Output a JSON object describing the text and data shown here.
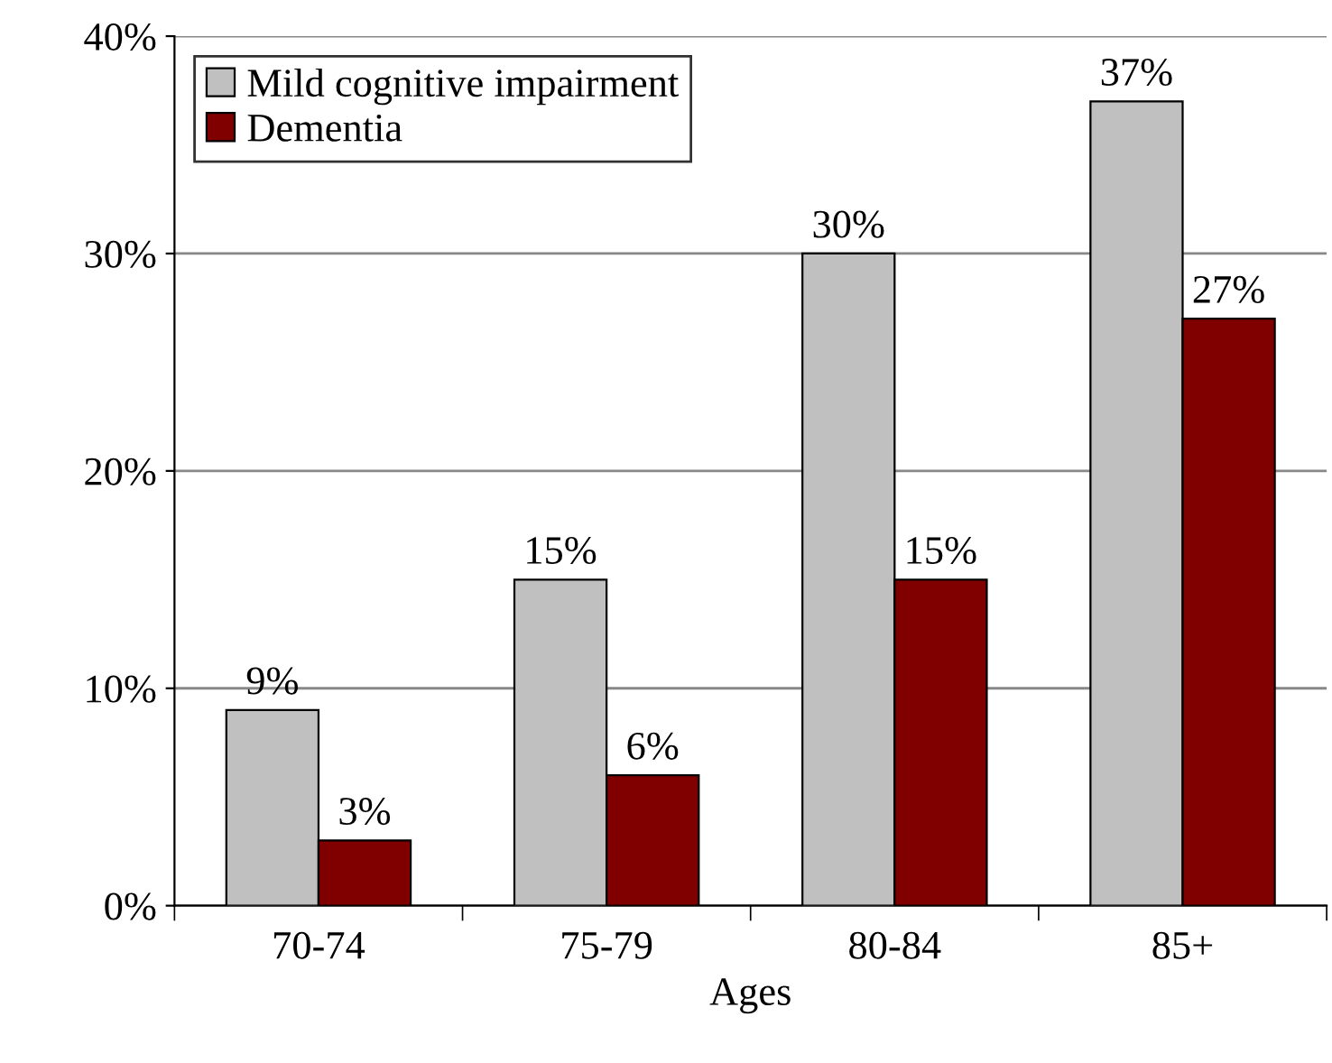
{
  "chart_data": {
    "type": "bar",
    "xlabel": "Ages",
    "categories": [
      "70-74",
      "75-79",
      "80-84",
      "85+"
    ],
    "series": [
      {
        "name": "Mild cognitive impairment",
        "color": "#c0c0c0",
        "values": [
          9,
          15,
          30,
          37
        ],
        "value_labels": [
          "9%",
          "15%",
          "30%",
          "37%"
        ]
      },
      {
        "name": "Dementia",
        "color": "#800000",
        "values": [
          3,
          6,
          15,
          27
        ],
        "value_labels": [
          "3%",
          "6%",
          "15%",
          "27%"
        ]
      }
    ],
    "ylim": [
      0,
      40
    ],
    "yticks": [
      {
        "value": 0,
        "label": "0%"
      },
      {
        "value": 10,
        "label": "10%"
      },
      {
        "value": 20,
        "label": "20%"
      },
      {
        "value": 30,
        "label": "30%"
      },
      {
        "value": 40,
        "label": "40%"
      }
    ],
    "grid": "y",
    "legend": "top left"
  }
}
